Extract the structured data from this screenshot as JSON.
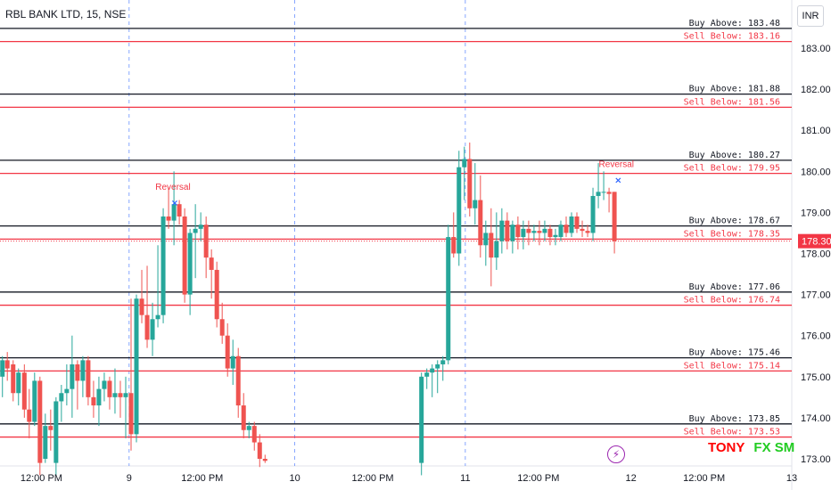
{
  "header": {
    "title": "RBL BANK LTD, 15, NSE",
    "currency_button": "INR"
  },
  "watermark": {
    "part1": "TONY",
    "part2": "FX SM"
  },
  "icons": {
    "bolt": "lightning-bolt-icon"
  },
  "colors": {
    "up": "#26a69a",
    "down": "#ef5350",
    "buy_line": "#131722",
    "sell_line": "#f23645",
    "current_price_bg": "#f23645",
    "divider": "#2962ff",
    "annotation": "#f23645",
    "marker": "#2962ff"
  },
  "chart_data": {
    "type": "candlestick",
    "title": "RBL BANK LTD, 15, NSE",
    "ylim": [
      172.9,
      184.0
    ],
    "y_ticks": [
      173.0,
      174.0,
      175.0,
      176.0,
      177.0,
      178.0,
      179.0,
      180.0,
      181.0,
      182.0,
      183.0
    ],
    "x_ticks": [
      {
        "x": 0.8,
        "label": "12:00 PM"
      },
      {
        "x": 2.6,
        "label": "9"
      },
      {
        "x": 4.1,
        "label": "12:00 PM"
      },
      {
        "x": 6.0,
        "label": "10"
      },
      {
        "x": 7.6,
        "label": "12:00 PM"
      },
      {
        "x": 9.5,
        "label": "11"
      },
      {
        "x": 11.0,
        "label": "12:00 PM"
      },
      {
        "x": 12.9,
        "label": "12"
      },
      {
        "x": 14.4,
        "label": "12:00 PM"
      },
      {
        "x": 16.2,
        "label": "13"
      }
    ],
    "session_dividers": [
      2.6,
      6.0,
      9.5
    ],
    "levels": [
      {
        "buy": 183.48,
        "sell": 183.16,
        "buy_label": "Buy Above: 183.48",
        "sell_label": "Sell Below: 183.16"
      },
      {
        "buy": 181.88,
        "sell": 181.56,
        "buy_label": "Buy Above: 181.88",
        "sell_label": "Sell Below: 181.56"
      },
      {
        "buy": 180.27,
        "sell": 179.95,
        "buy_label": "Buy Above: 180.27",
        "sell_label": "Sell Below: 179.95"
      },
      {
        "buy": 178.67,
        "sell": 178.35,
        "buy_label": "Buy Above: 178.67",
        "sell_label": "Sell Below: 178.35"
      },
      {
        "buy": 177.06,
        "sell": 176.74,
        "buy_label": "Buy Above: 177.06",
        "sell_label": "Sell Below: 176.74"
      },
      {
        "buy": 175.46,
        "sell": 175.14,
        "buy_label": "Buy Above: 175.46",
        "sell_label": "Sell Below: 175.14"
      },
      {
        "buy": 173.85,
        "sell": 173.53,
        "buy_label": "Buy Above: 173.85",
        "sell_label": "Sell Below: 173.53"
      }
    ],
    "current_price": 178.3,
    "current_price_label": "178.30",
    "annotations": [
      {
        "text": "Reversal",
        "x": 3.5,
        "y": 179.55,
        "marker_y": 179.25
      },
      {
        "text": "Reversal",
        "x": 12.6,
        "y": 180.1,
        "marker_y": 179.8
      }
    ],
    "candles": [
      {
        "x": 0.0,
        "o": 175.0,
        "h": 175.5,
        "l": 174.5,
        "c": 175.4
      },
      {
        "x": 0.1,
        "o": 175.4,
        "h": 175.6,
        "l": 174.9,
        "c": 175.2
      },
      {
        "x": 0.22,
        "o": 175.3,
        "h": 175.4,
        "l": 174.4,
        "c": 174.6
      },
      {
        "x": 0.33,
        "o": 174.6,
        "h": 175.2,
        "l": 174.3,
        "c": 175.1
      },
      {
        "x": 0.45,
        "o": 175.1,
        "h": 175.3,
        "l": 174.0,
        "c": 174.2
      },
      {
        "x": 0.55,
        "o": 174.2,
        "h": 174.7,
        "l": 173.5,
        "c": 173.9
      },
      {
        "x": 0.66,
        "o": 173.9,
        "h": 175.1,
        "l": 173.8,
        "c": 174.9
      },
      {
        "x": 0.77,
        "o": 174.9,
        "h": 175.0,
        "l": 172.6,
        "c": 172.9
      },
      {
        "x": 0.88,
        "o": 173.0,
        "h": 174.1,
        "l": 172.9,
        "c": 173.8
      },
      {
        "x": 0.99,
        "o": 173.8,
        "h": 174.2,
        "l": 173.2,
        "c": 173.7
      },
      {
        "x": 1.1,
        "o": 172.9,
        "h": 174.5,
        "l": 172.6,
        "c": 174.4
      },
      {
        "x": 1.21,
        "o": 174.4,
        "h": 174.8,
        "l": 173.9,
        "c": 174.6
      },
      {
        "x": 1.32,
        "o": 174.6,
        "h": 175.3,
        "l": 174.3,
        "c": 174.7
      },
      {
        "x": 1.43,
        "o": 174.7,
        "h": 176.0,
        "l": 174.0,
        "c": 175.3
      },
      {
        "x": 1.54,
        "o": 175.3,
        "h": 175.4,
        "l": 174.2,
        "c": 174.9
      },
      {
        "x": 1.65,
        "o": 174.9,
        "h": 175.5,
        "l": 174.5,
        "c": 175.4
      },
      {
        "x": 1.76,
        "o": 175.4,
        "h": 175.5,
        "l": 174.3,
        "c": 174.5
      },
      {
        "x": 1.87,
        "o": 174.5,
        "h": 174.9,
        "l": 174.0,
        "c": 174.3
      },
      {
        "x": 1.98,
        "o": 174.3,
        "h": 175.0,
        "l": 173.8,
        "c": 174.7
      },
      {
        "x": 2.09,
        "o": 174.7,
        "h": 175.1,
        "l": 174.4,
        "c": 174.9
      },
      {
        "x": 2.2,
        "o": 174.9,
        "h": 175.0,
        "l": 174.2,
        "c": 174.5
      },
      {
        "x": 2.31,
        "o": 174.5,
        "h": 175.2,
        "l": 174.1,
        "c": 174.6
      },
      {
        "x": 2.42,
        "o": 174.6,
        "h": 174.9,
        "l": 174.0,
        "c": 174.5
      },
      {
        "x": 2.53,
        "o": 174.5,
        "h": 175.0,
        "l": 173.5,
        "c": 174.6
      },
      {
        "x": 2.64,
        "o": 174.6,
        "h": 176.9,
        "l": 173.2,
        "c": 173.6
      },
      {
        "x": 2.75,
        "o": 173.6,
        "h": 177.0,
        "l": 173.4,
        "c": 176.9
      },
      {
        "x": 2.86,
        "o": 176.9,
        "h": 177.6,
        "l": 176.3,
        "c": 176.5
      },
      {
        "x": 2.97,
        "o": 176.5,
        "h": 177.7,
        "l": 175.7,
        "c": 175.9
      },
      {
        "x": 3.08,
        "o": 175.9,
        "h": 176.8,
        "l": 175.5,
        "c": 176.4
      },
      {
        "x": 3.19,
        "o": 176.4,
        "h": 178.2,
        "l": 176.2,
        "c": 176.5
      },
      {
        "x": 3.3,
        "o": 176.5,
        "h": 179.1,
        "l": 176.3,
        "c": 178.9
      },
      {
        "x": 3.41,
        "o": 178.9,
        "h": 179.6,
        "l": 178.6,
        "c": 178.8
      },
      {
        "x": 3.52,
        "o": 178.8,
        "h": 180.0,
        "l": 178.2,
        "c": 179.2
      },
      {
        "x": 3.63,
        "o": 179.2,
        "h": 179.3,
        "l": 178.7,
        "c": 178.9
      },
      {
        "x": 3.74,
        "o": 178.9,
        "h": 179.1,
        "l": 176.8,
        "c": 177.0
      },
      {
        "x": 3.85,
        "o": 177.0,
        "h": 178.6,
        "l": 176.5,
        "c": 178.5
      },
      {
        "x": 3.96,
        "o": 178.5,
        "h": 179.2,
        "l": 177.4,
        "c": 178.6
      },
      {
        "x": 4.07,
        "o": 178.6,
        "h": 179.0,
        "l": 178.3,
        "c": 178.7
      },
      {
        "x": 4.18,
        "o": 178.7,
        "h": 178.9,
        "l": 177.4,
        "c": 177.9
      },
      {
        "x": 4.29,
        "o": 177.9,
        "h": 178.1,
        "l": 176.9,
        "c": 177.6
      },
      {
        "x": 4.4,
        "o": 177.6,
        "h": 177.8,
        "l": 176.2,
        "c": 176.4
      },
      {
        "x": 4.51,
        "o": 176.4,
        "h": 176.8,
        "l": 175.8,
        "c": 176.0
      },
      {
        "x": 4.62,
        "o": 176.0,
        "h": 176.3,
        "l": 175.0,
        "c": 175.2
      },
      {
        "x": 4.73,
        "o": 175.2,
        "h": 175.9,
        "l": 174.8,
        "c": 175.5
      },
      {
        "x": 4.84,
        "o": 175.5,
        "h": 175.7,
        "l": 174.0,
        "c": 174.3
      },
      {
        "x": 4.95,
        "o": 174.3,
        "h": 174.6,
        "l": 173.5,
        "c": 173.7
      },
      {
        "x": 5.06,
        "o": 173.7,
        "h": 173.9,
        "l": 173.5,
        "c": 173.8
      },
      {
        "x": 5.17,
        "o": 173.8,
        "h": 173.9,
        "l": 173.2,
        "c": 173.4
      },
      {
        "x": 5.28,
        "o": 173.4,
        "h": 173.6,
        "l": 172.8,
        "c": 173.0
      },
      {
        "x": 5.39,
        "o": 173.0,
        "h": 173.1,
        "l": 172.9,
        "c": 172.95
      },
      {
        "x": 8.6,
        "o": 172.9,
        "h": 175.1,
        "l": 172.6,
        "c": 175.0
      },
      {
        "x": 8.71,
        "o": 175.0,
        "h": 175.2,
        "l": 174.7,
        "c": 175.1
      },
      {
        "x": 8.82,
        "o": 175.1,
        "h": 175.3,
        "l": 174.5,
        "c": 175.2
      },
      {
        "x": 8.93,
        "o": 175.2,
        "h": 175.4,
        "l": 174.6,
        "c": 175.3
      },
      {
        "x": 9.04,
        "o": 175.3,
        "h": 175.5,
        "l": 174.9,
        "c": 175.4
      },
      {
        "x": 9.15,
        "o": 175.4,
        "h": 178.7,
        "l": 175.3,
        "c": 178.4
      },
      {
        "x": 9.26,
        "o": 178.4,
        "h": 179.0,
        "l": 177.9,
        "c": 178.0
      },
      {
        "x": 9.37,
        "o": 178.0,
        "h": 180.5,
        "l": 177.7,
        "c": 180.1
      },
      {
        "x": 9.48,
        "o": 180.1,
        "h": 180.6,
        "l": 179.3,
        "c": 180.3
      },
      {
        "x": 9.59,
        "o": 180.3,
        "h": 180.7,
        "l": 178.9,
        "c": 179.1
      },
      {
        "x": 9.7,
        "o": 179.1,
        "h": 180.2,
        "l": 178.7,
        "c": 179.3
      },
      {
        "x": 9.81,
        "o": 179.3,
        "h": 179.9,
        "l": 177.9,
        "c": 178.2
      },
      {
        "x": 9.92,
        "o": 178.2,
        "h": 178.8,
        "l": 177.7,
        "c": 178.5
      },
      {
        "x": 10.03,
        "o": 178.5,
        "h": 179.1,
        "l": 177.2,
        "c": 177.9
      },
      {
        "x": 10.14,
        "o": 177.9,
        "h": 179.0,
        "l": 177.6,
        "c": 178.3
      },
      {
        "x": 10.25,
        "o": 178.3,
        "h": 179.1,
        "l": 178.0,
        "c": 178.8
      },
      {
        "x": 10.36,
        "o": 178.8,
        "h": 179.0,
        "l": 178.1,
        "c": 178.3
      },
      {
        "x": 10.47,
        "o": 178.3,
        "h": 178.8,
        "l": 178.0,
        "c": 178.7
      },
      {
        "x": 10.58,
        "o": 178.7,
        "h": 178.9,
        "l": 178.1,
        "c": 178.4
      },
      {
        "x": 10.69,
        "o": 178.4,
        "h": 178.8,
        "l": 178.1,
        "c": 178.6
      },
      {
        "x": 10.8,
        "o": 178.6,
        "h": 178.8,
        "l": 178.2,
        "c": 178.5
      },
      {
        "x": 10.91,
        "o": 178.5,
        "h": 178.7,
        "l": 178.3,
        "c": 178.55
      },
      {
        "x": 11.02,
        "o": 178.55,
        "h": 178.8,
        "l": 178.2,
        "c": 178.5
      },
      {
        "x": 11.13,
        "o": 178.5,
        "h": 178.8,
        "l": 178.3,
        "c": 178.6
      },
      {
        "x": 11.24,
        "o": 178.6,
        "h": 178.7,
        "l": 178.2,
        "c": 178.4
      },
      {
        "x": 11.35,
        "o": 178.4,
        "h": 178.6,
        "l": 178.2,
        "c": 178.45
      },
      {
        "x": 11.46,
        "o": 178.4,
        "h": 178.8,
        "l": 178.3,
        "c": 178.7
      },
      {
        "x": 11.57,
        "o": 178.7,
        "h": 178.9,
        "l": 178.4,
        "c": 178.5
      },
      {
        "x": 11.68,
        "o": 178.5,
        "h": 179.0,
        "l": 178.4,
        "c": 178.9
      },
      {
        "x": 11.79,
        "o": 178.9,
        "h": 179.0,
        "l": 178.5,
        "c": 178.6
      },
      {
        "x": 11.9,
        "o": 178.6,
        "h": 178.8,
        "l": 178.4,
        "c": 178.55
      },
      {
        "x": 12.01,
        "o": 178.55,
        "h": 178.7,
        "l": 178.4,
        "c": 178.5
      },
      {
        "x": 12.12,
        "o": 178.5,
        "h": 179.6,
        "l": 178.3,
        "c": 179.4
      },
      {
        "x": 12.23,
        "o": 179.4,
        "h": 180.2,
        "l": 179.1,
        "c": 179.5
      },
      {
        "x": 12.34,
        "o": 179.5,
        "h": 180.0,
        "l": 179.3,
        "c": 179.5
      },
      {
        "x": 12.45,
        "o": 179.5,
        "h": 179.6,
        "l": 179.0,
        "c": 179.45
      },
      {
        "x": 12.56,
        "o": 179.5,
        "h": 179.5,
        "l": 178.0,
        "c": 178.3
      }
    ]
  }
}
